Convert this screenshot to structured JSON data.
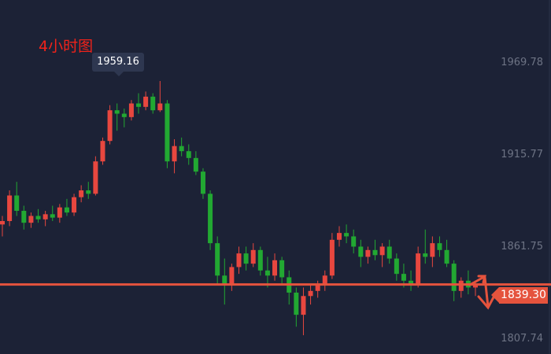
{
  "chart_data": {
    "type": "candlestick",
    "title": "4小时图",
    "ylim": [
      1800,
      1985
    ],
    "y_ticks": [
      "1969.78",
      "1915.77",
      "1861.75",
      "1807.74"
    ],
    "y_tick_values": [
      1969.78,
      1915.77,
      1861.75,
      1807.74
    ],
    "high_annotation": {
      "label": "1959.16",
      "value": 1959.16
    },
    "last_price": {
      "label": "1839.30",
      "value": 1839.3
    },
    "colors": {
      "up": "#e8473f",
      "down": "#22a832",
      "background": "#1c2236",
      "price_line": "#e5533d"
    },
    "annotation": "arrows up and down at last price",
    "ohlc": [
      [
        1875,
        1880,
        1868,
        1877
      ],
      [
        1877,
        1895,
        1874,
        1892
      ],
      [
        1892,
        1900,
        1880,
        1883
      ],
      [
        1883,
        1886,
        1872,
        1876
      ],
      [
        1876,
        1882,
        1873,
        1880
      ],
      [
        1880,
        1884,
        1876,
        1878
      ],
      [
        1878,
        1883,
        1874,
        1881
      ],
      [
        1881,
        1886,
        1877,
        1879
      ],
      [
        1879,
        1887,
        1876,
        1885
      ],
      [
        1885,
        1890,
        1880,
        1882
      ],
      [
        1882,
        1893,
        1880,
        1891
      ],
      [
        1891,
        1898,
        1888,
        1895
      ],
      [
        1895,
        1900,
        1890,
        1893
      ],
      [
        1893,
        1915,
        1892,
        1912
      ],
      [
        1912,
        1926,
        1910,
        1924
      ],
      [
        1924,
        1945,
        1922,
        1942
      ],
      [
        1942,
        1946,
        1930,
        1940
      ],
      [
        1940,
        1943,
        1932,
        1938
      ],
      [
        1938,
        1948,
        1936,
        1946
      ],
      [
        1946,
        1952,
        1940,
        1944
      ],
      [
        1944,
        1953,
        1942,
        1950
      ],
      [
        1950,
        1952,
        1940,
        1942
      ],
      [
        1942,
        1959.16,
        1941,
        1946
      ],
      [
        1946,
        1948,
        1908,
        1912
      ],
      [
        1912,
        1925,
        1905,
        1921
      ],
      [
        1921,
        1926,
        1915,
        1918
      ],
      [
        1918,
        1922,
        1910,
        1914
      ],
      [
        1914,
        1918,
        1904,
        1906
      ],
      [
        1906,
        1908,
        1890,
        1893
      ],
      [
        1893,
        1895,
        1860,
        1864
      ],
      [
        1864,
        1868,
        1840,
        1845
      ],
      [
        1845,
        1855,
        1828,
        1840
      ],
      [
        1840,
        1852,
        1836,
        1850
      ],
      [
        1850,
        1862,
        1846,
        1858
      ],
      [
        1858,
        1862,
        1848,
        1852
      ],
      [
        1852,
        1864,
        1850,
        1860
      ],
      [
        1860,
        1862,
        1845,
        1848
      ],
      [
        1848,
        1856,
        1838,
        1845
      ],
      [
        1845,
        1858,
        1842,
        1854
      ],
      [
        1854,
        1856,
        1840,
        1844
      ],
      [
        1844,
        1848,
        1828,
        1835
      ],
      [
        1835,
        1838,
        1815,
        1822
      ],
      [
        1822,
        1838,
        1810,
        1833
      ],
      [
        1833,
        1840,
        1828,
        1836
      ],
      [
        1836,
        1842,
        1832,
        1840
      ],
      [
        1840,
        1848,
        1836,
        1845
      ],
      [
        1845,
        1870,
        1843,
        1866
      ],
      [
        1866,
        1874,
        1862,
        1870
      ],
      [
        1870,
        1875,
        1864,
        1868
      ],
      [
        1868,
        1872,
        1858,
        1862
      ],
      [
        1862,
        1866,
        1850,
        1856
      ],
      [
        1856,
        1862,
        1852,
        1860
      ],
      [
        1860,
        1866,
        1854,
        1857
      ],
      [
        1857,
        1864,
        1850,
        1862
      ],
      [
        1862,
        1866,
        1852,
        1855
      ],
      [
        1855,
        1858,
        1842,
        1846
      ],
      [
        1846,
        1852,
        1838,
        1842
      ],
      [
        1842,
        1848,
        1836,
        1840
      ],
      [
        1840,
        1862,
        1838,
        1858
      ],
      [
        1858,
        1872,
        1852,
        1856
      ],
      [
        1856,
        1868,
        1850,
        1864
      ],
      [
        1864,
        1868,
        1856,
        1860
      ],
      [
        1860,
        1866,
        1850,
        1852
      ],
      [
        1852,
        1854,
        1830,
        1836
      ],
      [
        1836,
        1844,
        1832,
        1842
      ],
      [
        1842,
        1848,
        1834,
        1838
      ],
      [
        1838,
        1842,
        1833,
        1839.3
      ]
    ]
  }
}
